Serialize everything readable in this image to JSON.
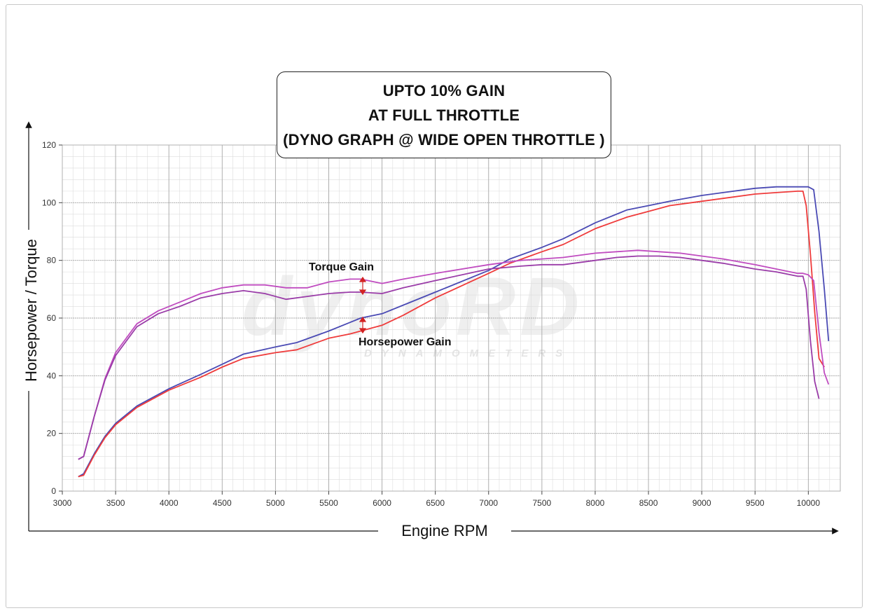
{
  "title_lines": [
    "UPTO 10% GAIN",
    "AT FULL THROTTLE",
    "(DYNO GRAPH @ WIDE OPEN THROTTLE )"
  ],
  "annotations": {
    "torque_gain": "Torque Gain",
    "horsepower_gain": "Horsepower Gain"
  },
  "watermark": {
    "logo": "dynoRD",
    "tagline": "DYNAMOMETERS"
  },
  "colors": {
    "tuned": "#4a4ab4",
    "stock": "#ef3b3b",
    "torque_tuned": "#c04cc0",
    "torque_stock": "#9a3ca8",
    "grid_major": "#a8a8a8",
    "grid_minor": "#dcdcdc",
    "gain_marker": "#d22222"
  },
  "chart_data": {
    "type": "line",
    "xlabel": "Engine RPM",
    "ylabel": "Horsepower / Torque",
    "xlim": [
      3000,
      10300
    ],
    "ylim": [
      0,
      120
    ],
    "x_ticks": [
      3000,
      3500,
      4000,
      4500,
      5000,
      5500,
      6000,
      6500,
      7000,
      7500,
      8000,
      8500,
      9000,
      9500,
      10000
    ],
    "y_ticks": [
      0,
      20,
      40,
      60,
      80,
      100,
      120
    ],
    "grid": true,
    "legend": "none",
    "series": [
      {
        "color": "#4a4ab4",
        "x": [
          3150,
          3200,
          3300,
          3400,
          3500,
          3700,
          4000,
          4300,
          4500,
          4700,
          5000,
          5200,
          5500,
          5700,
          5800,
          6000,
          6200,
          6500,
          7000,
          7200,
          7500,
          7700,
          8000,
          8300,
          8500,
          8700,
          9000,
          9200,
          9500,
          9700,
          9900,
          9950,
          10000,
          10050,
          10100,
          10150,
          10190
        ],
        "y": [
          5,
          6,
          13,
          19,
          23.5,
          29.5,
          35.5,
          40.5,
          44,
          47.5,
          50,
          51.5,
          55.5,
          58.5,
          60,
          61.5,
          64.5,
          69,
          76.5,
          80.5,
          84.5,
          87.5,
          93,
          97.5,
          99,
          100.5,
          102.5,
          103.5,
          105,
          105.5,
          105.5,
          105.5,
          105.5,
          104.5,
          90,
          70,
          52
        ]
      },
      {
        "color": "#ef3b3b",
        "x": [
          3150,
          3200,
          3300,
          3400,
          3500,
          3700,
          4000,
          4300,
          4500,
          4700,
          5000,
          5200,
          5500,
          5700,
          5800,
          6000,
          6200,
          6500,
          7000,
          7200,
          7500,
          7700,
          8000,
          8300,
          8500,
          8700,
          9000,
          9200,
          9500,
          9700,
          9900,
          9950,
          9980,
          10020,
          10060,
          10100,
          10150
        ],
        "y": [
          5,
          5.5,
          12.5,
          18.5,
          23,
          29,
          35,
          39.5,
          43,
          46,
          48,
          49,
          53,
          54.5,
          55.5,
          57.5,
          61,
          67,
          75.5,
          79,
          83,
          85.5,
          91,
          95,
          97,
          99,
          100.5,
          101.5,
          103,
          103.5,
          104,
          104,
          99,
          82,
          62,
          46,
          43
        ]
      },
      {
        "color": "#c04cc0",
        "x": [
          3150,
          3200,
          3300,
          3400,
          3500,
          3700,
          3900,
          4100,
          4300,
          4500,
          4700,
          4900,
          5100,
          5300,
          5500,
          5700,
          5800,
          6000,
          6200,
          6500,
          7000,
          7300,
          7500,
          7700,
          8000,
          8200,
          8400,
          8600,
          8800,
          9000,
          9200,
          9500,
          9700,
          9900,
          9950,
          10000,
          10050,
          10100,
          10150,
          10190
        ],
        "y": [
          11,
          12,
          26,
          39,
          48,
          58,
          62.5,
          65.5,
          68.5,
          70.5,
          71.5,
          71.5,
          70.5,
          70.5,
          72.5,
          73.5,
          73.5,
          72,
          73.5,
          75.5,
          78.5,
          80,
          80.5,
          81,
          82.5,
          83,
          83.5,
          83,
          82.5,
          81.5,
          80.5,
          78.5,
          77,
          75.5,
          75.5,
          75,
          73,
          55,
          41,
          37
        ]
      },
      {
        "color": "#9a3ca8",
        "x": [
          3150,
          3200,
          3300,
          3400,
          3500,
          3700,
          3900,
          4100,
          4300,
          4500,
          4700,
          4900,
          5100,
          5300,
          5500,
          5700,
          5800,
          6000,
          6200,
          6500,
          7000,
          7300,
          7500,
          7700,
          8000,
          8200,
          8400,
          8600,
          8800,
          9000,
          9200,
          9500,
          9700,
          9900,
          9950,
          9980,
          10020,
          10060,
          10100
        ],
        "y": [
          11,
          12,
          26,
          38.5,
          47,
          57,
          61.5,
          64,
          67,
          68.5,
          69.5,
          68.5,
          66.5,
          67.5,
          68.5,
          69,
          69,
          68.5,
          70.5,
          73,
          77,
          78,
          78.5,
          78.5,
          80,
          81,
          81.5,
          81.5,
          81,
          80,
          79,
          77,
          76,
          74.5,
          74.5,
          70,
          52,
          38,
          32
        ]
      }
    ]
  }
}
